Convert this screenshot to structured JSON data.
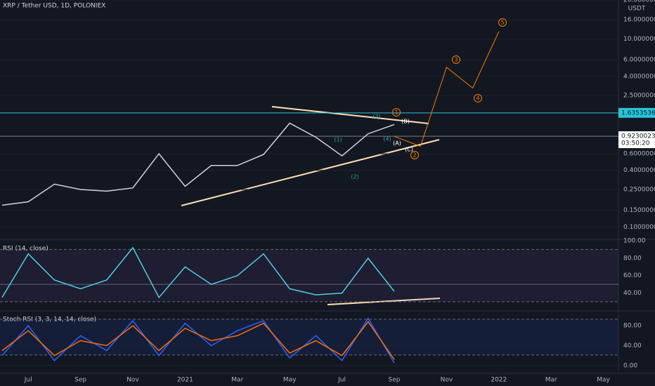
{
  "chart_data": [
    {
      "type": "line",
      "title": "XRP / Tether USD, 1D, POLONIEX",
      "unit": "USDT",
      "log_scale": true,
      "categories": [
        null,
        "Jul",
        null,
        "Sep",
        null,
        "Nov",
        null,
        "2021",
        null,
        "Mar",
        null,
        "May",
        null,
        "Jul",
        null,
        "Sep",
        null,
        "Nov",
        null,
        "2022",
        null,
        "Mar",
        null,
        "May"
      ],
      "series": [
        {
          "color": "#d1d4dc",
          "values": [
            0.17,
            0.185,
            0.285,
            0.25,
            0.24,
            0.26,
            0.6,
            0.27,
            0.45,
            0.45,
            0.59,
            1.27,
            0.9,
            0.57,
            0.98,
            1.23,
            null,
            null,
            null,
            null,
            null,
            null,
            null,
            null
          ]
        },
        {
          "color": "#f57c00",
          "values": [
            null,
            null,
            null,
            null,
            null,
            null,
            null,
            null,
            null,
            null,
            null,
            null,
            null,
            null,
            null,
            0.92,
            0.72,
            5.0,
            3.0,
            12,
            null,
            null,
            null,
            null
          ]
        }
      ],
      "ylim": [
        0.075,
        26
      ],
      "yticks": [
        {
          "value": 0.1,
          "label": "0.10000000"
        },
        {
          "value": 0.15,
          "label": "0.15000000"
        },
        {
          "value": 0.25,
          "label": "0.25000000"
        },
        {
          "value": 0.4,
          "label": "0.40000000"
        },
        {
          "value": 0.6,
          "label": "0.60000000"
        },
        {
          "value": 2.5,
          "label": "2.50000000"
        },
        {
          "value": 4,
          "label": "4.00000000"
        },
        {
          "value": 6,
          "label": "6.00000000"
        },
        {
          "value": 10,
          "label": "10.00000000"
        },
        {
          "value": 16,
          "label": "16.00000000"
        },
        {
          "value": 26,
          "label": "26.00000000"
        }
      ],
      "price_lines": [
        {
          "value": 1.63535363,
          "label": "1.63535363",
          "color": "#26c6da"
        },
        {
          "value": 0.9230023,
          "label": "0.92300230",
          "color": "#787b86"
        }
      ],
      "countdown": "03:50:20",
      "annotations": [
        {
          "text": "(1)",
          "color": "#26a69a"
        },
        {
          "text": "(2)",
          "color": "#26a69a"
        },
        {
          "text": "(3)",
          "color": "#26a69a"
        },
        {
          "text": "(4)",
          "color": "#26a69a"
        },
        {
          "text": "1",
          "color": "#f57c00"
        },
        {
          "text": "(B)",
          "color": "#ffffff"
        },
        {
          "text": "(A)",
          "color": "#ffffff"
        },
        {
          "text": "(C)",
          "color": "#ffffff"
        },
        {
          "text": "2",
          "color": "#f57c00"
        },
        {
          "text": "3",
          "color": "#f57c00"
        },
        {
          "text": "4",
          "color": "#f57c00"
        },
        {
          "text": "5",
          "color": "#f57c00"
        }
      ]
    },
    {
      "type": "line",
      "title": "RSI (14, close)",
      "series": [
        {
          "color": "#4dd0e1",
          "values": [
            35,
            85,
            55,
            45,
            55,
            92,
            35,
            70,
            50,
            60,
            85,
            45,
            38,
            40,
            80,
            42,
            null,
            null,
            null,
            null,
            null,
            null,
            null,
            null
          ]
        }
      ],
      "ylim": [
        22,
        100
      ],
      "yticks": [
        {
          "value": 40,
          "label": "40.00"
        },
        {
          "value": 60,
          "label": "60.00"
        },
        {
          "value": 80,
          "label": "80.00"
        },
        {
          "value": 100,
          "label": "100.00"
        }
      ],
      "levels": [
        90,
        50,
        30
      ],
      "band_color": "#7e57c2"
    },
    {
      "type": "line",
      "title": "Stoch RSI (3, 3, 14, 14, close)",
      "series": [
        {
          "color": "#2962ff",
          "values": [
            20,
            80,
            10,
            60,
            30,
            90,
            20,
            85,
            40,
            70,
            90,
            15,
            60,
            10,
            95,
            5,
            null,
            null,
            null,
            null,
            null,
            null,
            null,
            null
          ]
        },
        {
          "color": "#ff6d00",
          "values": [
            30,
            70,
            20,
            50,
            40,
            80,
            30,
            75,
            50,
            60,
            85,
            25,
            50,
            20,
            88,
            12,
            null,
            null,
            null,
            null,
            null,
            null,
            null,
            null
          ]
        }
      ],
      "ylim": [
        -13,
        107
      ],
      "yticks": [
        {
          "value": 0,
          "label": "0.00"
        },
        {
          "value": 40,
          "label": "40.00"
        },
        {
          "value": 80,
          "label": "80.00"
        }
      ],
      "levels": [
        93,
        21
      ],
      "band_color": "#2962ff"
    }
  ]
}
